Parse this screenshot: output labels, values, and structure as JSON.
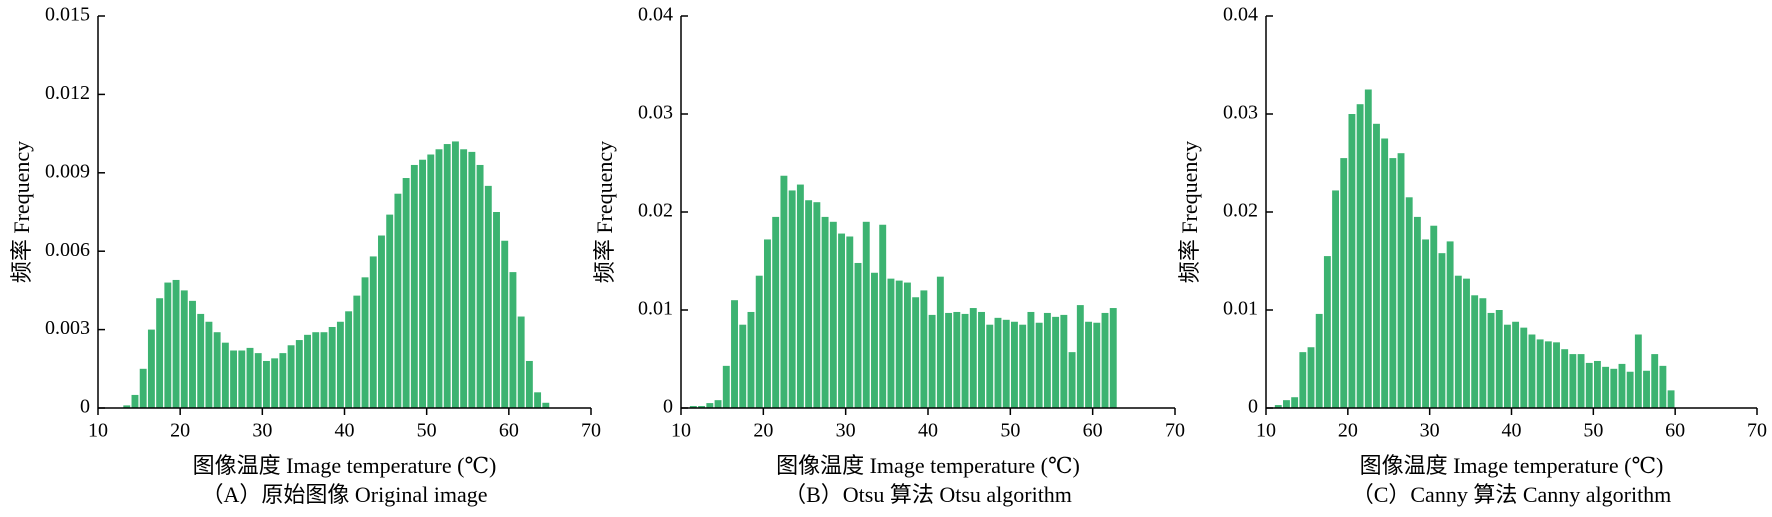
{
  "chart_data": [
    {
      "type": "histogram",
      "caption": "（A）原始图像 Original image",
      "xlabel": "图像温度 Image temperature (℃)",
      "ylabel": "频率 Frequency",
      "color": "#3cb371",
      "bins": [
        13,
        14,
        15,
        16,
        17,
        18,
        19,
        20,
        21,
        22,
        23,
        24,
        25,
        26,
        27,
        28,
        29,
        30,
        31,
        32,
        33,
        34,
        35,
        36,
        37,
        38,
        39,
        40,
        41,
        42,
        43,
        44,
        45,
        46,
        47,
        48,
        49,
        50,
        51,
        52,
        53,
        54,
        55,
        56,
        57,
        58,
        59,
        60,
        61,
        62,
        63,
        64,
        65
      ],
      "values": [
        0.0001,
        0.0005,
        0.0015,
        0.003,
        0.0042,
        0.0048,
        0.0049,
        0.0045,
        0.0041,
        0.0036,
        0.0033,
        0.0029,
        0.0025,
        0.0022,
        0.0022,
        0.0023,
        0.0021,
        0.0018,
        0.0019,
        0.0021,
        0.0024,
        0.0026,
        0.0028,
        0.0029,
        0.0029,
        0.0031,
        0.0033,
        0.0037,
        0.0043,
        0.005,
        0.0058,
        0.0066,
        0.0074,
        0.0082,
        0.0088,
        0.0093,
        0.0095,
        0.0097,
        0.0099,
        0.0101,
        0.0102,
        0.0099,
        0.0098,
        0.0093,
        0.0085,
        0.0075,
        0.0064,
        0.0052,
        0.0035,
        0.0018,
        0.0006,
        0.0002
      ],
      "xlim": [
        10,
        70
      ],
      "xticks": [
        10,
        20,
        30,
        40,
        50,
        60,
        70
      ],
      "ylim": [
        0,
        0.015
      ],
      "yticks": [
        0,
        0.003,
        0.006,
        0.009,
        0.012,
        0.015
      ]
    },
    {
      "type": "histogram",
      "caption": "（B）Otsu 算法 Otsu algorithm",
      "xlabel": "图像温度 Image temperature (℃)",
      "ylabel": "频率 Frequency",
      "color": "#3cb371",
      "bins": [
        11,
        12,
        13,
        14,
        15,
        16,
        17,
        18,
        19,
        20,
        21,
        22,
        23,
        24,
        25,
        26,
        27,
        28,
        29,
        30,
        31,
        32,
        33,
        34,
        35,
        36,
        37,
        38,
        39,
        40,
        41,
        42,
        43,
        44,
        45,
        46,
        47,
        48,
        49,
        50,
        51,
        52,
        53,
        54,
        55,
        56,
        57,
        58,
        59,
        60,
        61,
        62,
        63
      ],
      "values": [
        0.0002,
        0.0002,
        0.0005,
        0.0008,
        0.0043,
        0.011,
        0.0085,
        0.0098,
        0.0135,
        0.0172,
        0.0195,
        0.0237,
        0.0222,
        0.0228,
        0.0212,
        0.021,
        0.0195,
        0.019,
        0.0178,
        0.0175,
        0.0148,
        0.019,
        0.0138,
        0.0187,
        0.0132,
        0.013,
        0.0128,
        0.0113,
        0.012,
        0.0095,
        0.0134,
        0.0097,
        0.0098,
        0.0096,
        0.0102,
        0.0098,
        0.0085,
        0.0092,
        0.009,
        0.0088,
        0.0085,
        0.0098,
        0.0087,
        0.0097,
        0.0093,
        0.0095,
        0.0057,
        0.0105,
        0.0088,
        0.0087,
        0.0097,
        0.0102
      ],
      "xlim": [
        10,
        70
      ],
      "xticks": [
        10,
        20,
        30,
        40,
        50,
        60,
        70
      ],
      "ylim": [
        0,
        0.04
      ],
      "yticks": [
        0,
        0.01,
        0.02,
        0.03,
        0.04
      ]
    },
    {
      "type": "histogram",
      "caption": "（C）Canny 算法 Canny algorithm",
      "xlabel": "图像温度 Image temperature (℃)",
      "ylabel": "频率 Frequency",
      "color": "#3cb371",
      "bins": [
        11,
        12,
        13,
        14,
        15,
        16,
        17,
        18,
        19,
        20,
        21,
        22,
        23,
        24,
        25,
        26,
        27,
        28,
        29,
        30,
        31,
        32,
        33,
        34,
        35,
        36,
        37,
        38,
        39,
        40,
        41,
        42,
        43,
        44,
        45,
        46,
        47,
        48,
        49,
        50,
        51,
        52,
        53,
        54,
        55,
        56,
        57,
        58,
        59,
        60
      ],
      "values": [
        0.0003,
        0.0008,
        0.0011,
        0.0057,
        0.0062,
        0.0096,
        0.0155,
        0.0222,
        0.0255,
        0.03,
        0.031,
        0.0325,
        0.029,
        0.0275,
        0.0255,
        0.026,
        0.0215,
        0.0195,
        0.0172,
        0.0186,
        0.0158,
        0.017,
        0.0135,
        0.0132,
        0.0115,
        0.0112,
        0.0097,
        0.01,
        0.0085,
        0.0088,
        0.0082,
        0.0075,
        0.007,
        0.0068,
        0.0067,
        0.006,
        0.0055,
        0.0055,
        0.0046,
        0.0048,
        0.0042,
        0.004,
        0.0045,
        0.0037,
        0.0075,
        0.0038,
        0.0055,
        0.0043,
        0.0018
      ],
      "xlim": [
        10,
        70
      ],
      "xticks": [
        10,
        20,
        30,
        40,
        50,
        60,
        70
      ],
      "ylim": [
        0,
        0.04
      ],
      "yticks": [
        0,
        0.01,
        0.02,
        0.03,
        0.04
      ]
    }
  ]
}
